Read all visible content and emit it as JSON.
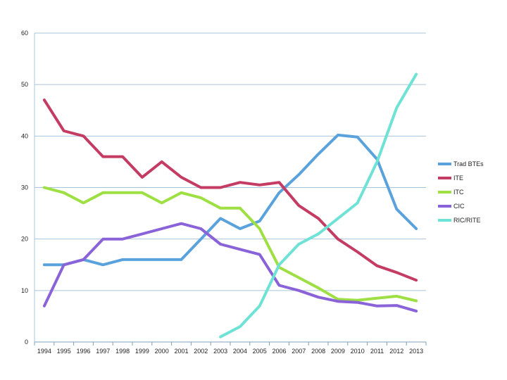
{
  "chart_data": {
    "type": "line",
    "title": "",
    "xlabel": "",
    "ylabel": "",
    "x": [
      "1994",
      "1995",
      "1996",
      "1997",
      "1998",
      "1999",
      "2000",
      "2001",
      "2002",
      "2003",
      "2004",
      "2005",
      "2006",
      "2007",
      "2008",
      "2009",
      "2010",
      "2011",
      "2012",
      "2013"
    ],
    "ylim": [
      0,
      60
    ],
    "yticks": [
      0,
      10,
      20,
      30,
      40,
      50,
      60
    ],
    "grid": true,
    "legend_position": "right",
    "series": [
      {
        "name": "Trad BTEs",
        "color": "#5aa2dc",
        "values": [
          15,
          15,
          16,
          15,
          16,
          16,
          16,
          16,
          20,
          24,
          22,
          23.5,
          29,
          32.5,
          36.5,
          40.2,
          39.8,
          35.5,
          25.8,
          22
        ]
      },
      {
        "name": "ITE",
        "color": "#c43c63",
        "values": [
          47,
          41,
          40,
          36,
          36,
          32,
          35,
          32,
          30,
          30,
          31,
          30.5,
          31,
          26.5,
          24,
          20,
          17.5,
          14.8,
          13.5,
          12
        ]
      },
      {
        "name": "ITC",
        "color": "#9ee043",
        "values": [
          30,
          29,
          27,
          29,
          29,
          29,
          27,
          29,
          28,
          26,
          26,
          22,
          14.5,
          12.5,
          10.5,
          8.3,
          8.1,
          8.5,
          8.9,
          8
        ]
      },
      {
        "name": "CIC",
        "color": "#8b63d8",
        "values": [
          7,
          15,
          16,
          20,
          20,
          21,
          22,
          23,
          22,
          19,
          18,
          17,
          11,
          10,
          8.7,
          7.9,
          7.7,
          7,
          7.1,
          6
        ]
      },
      {
        "name": "RIC/RITE",
        "color": "#6fe2d6",
        "values": [
          null,
          null,
          null,
          null,
          null,
          null,
          null,
          null,
          null,
          1,
          3,
          7,
          15,
          19,
          21,
          24,
          27,
          35,
          45.5,
          52
        ]
      }
    ]
  }
}
